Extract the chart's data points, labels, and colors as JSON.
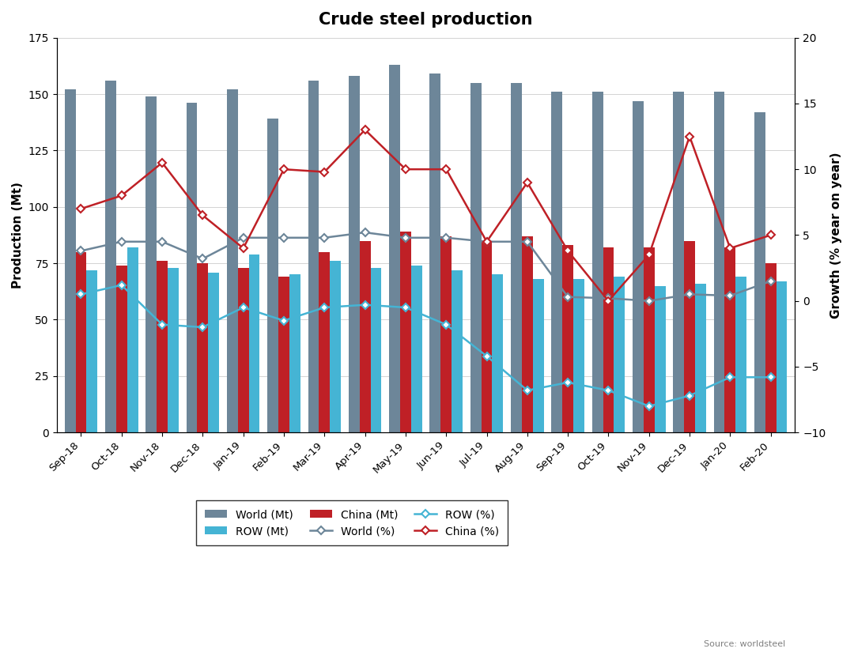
{
  "title": "Crude steel production",
  "ylabel_left": "Production (Mt)",
  "ylabel_right": "Growth (% year on year)",
  "source": "Source: worldsteel",
  "categories": [
    "Sep-18",
    "Oct-18",
    "Nov-18",
    "Dec-18",
    "Jan-19",
    "Feb-19",
    "Mar-19",
    "Apr-19",
    "May-19",
    "Jun-19",
    "Jul-19",
    "Aug-19",
    "Sep-19",
    "Oct-19",
    "Nov-19",
    "Dec-19",
    "Jan-20",
    "Feb-20"
  ],
  "world_mt": [
    152,
    156,
    149,
    146,
    152,
    139,
    156,
    158,
    163,
    159,
    155,
    155,
    151,
    151,
    147,
    151,
    151,
    142
  ],
  "china_mt": [
    80,
    74,
    76,
    75,
    73,
    69,
    80,
    85,
    89,
    87,
    85,
    87,
    83,
    82,
    82,
    85,
    82,
    75
  ],
  "row_mt": [
    72,
    82,
    73,
    71,
    79,
    70,
    76,
    73,
    74,
    72,
    70,
    68,
    68,
    69,
    65,
    66,
    69,
    67
  ],
  "world_pct": [
    3.8,
    4.5,
    4.5,
    3.2,
    4.8,
    4.8,
    4.8,
    5.2,
    4.8,
    4.8,
    4.5,
    4.5,
    0.3,
    0.2,
    0.0,
    0.5,
    0.4,
    1.5
  ],
  "china_pct": [
    7.0,
    8.0,
    10.5,
    6.5,
    4.0,
    10.0,
    9.8,
    13.0,
    10.0,
    10.0,
    4.5,
    9.0,
    3.8,
    0.0,
    3.5,
    12.5,
    4.0,
    5.0
  ],
  "row_pct": [
    0.5,
    1.2,
    -1.8,
    -2.0,
    -0.5,
    -1.5,
    -0.5,
    -0.3,
    -0.5,
    -1.8,
    -4.2,
    -6.8,
    -6.2,
    -6.8,
    -8.0,
    -7.2,
    -5.8,
    -5.8
  ],
  "world_color": "#6d8699",
  "china_color": "#bf2026",
  "row_color": "#45b4d4",
  "world_line_color": "#6d8699",
  "china_line_color": "#bf2026",
  "row_line_color": "#45b4d4",
  "bg_color": "#ffffff",
  "ylim_left": [
    0,
    175
  ],
  "ylim_right": [
    -10,
    20
  ],
  "yticks_left": [
    0,
    25,
    50,
    75,
    100,
    125,
    150,
    175
  ],
  "yticks_right": [
    -10,
    -5,
    0,
    5,
    10,
    15,
    20
  ]
}
